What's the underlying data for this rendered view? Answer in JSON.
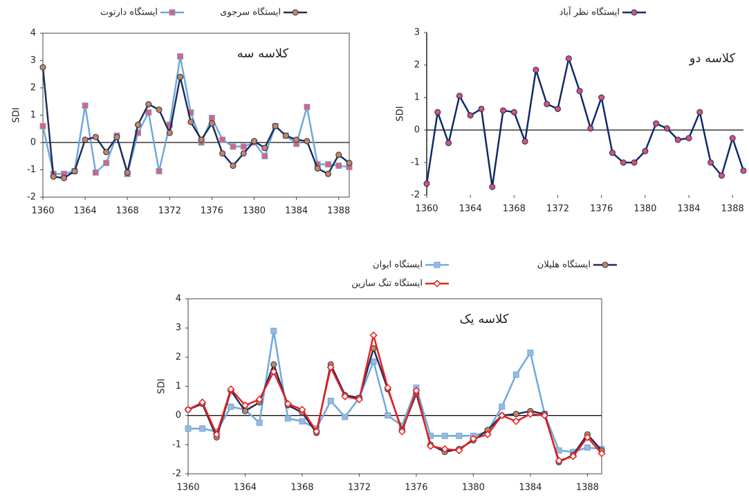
{
  "chart_data": [
    {
      "type": "line",
      "annotation": "کلاسه سه",
      "ylabel": "SDI",
      "x": [
        1360,
        1361,
        1362,
        1363,
        1364,
        1365,
        1366,
        1367,
        1368,
        1369,
        1370,
        1371,
        1372,
        1373,
        1374,
        1375,
        1376,
        1377,
        1378,
        1379,
        1380,
        1381,
        1382,
        1383,
        1384,
        1385,
        1386,
        1387,
        1388,
        1389
      ],
      "xlim": [
        1360,
        1389
      ],
      "xticks": [
        1360,
        1364,
        1368,
        1372,
        1376,
        1380,
        1384,
        1388
      ],
      "ylim": [
        -2,
        4
      ],
      "yticks": [
        -2,
        -1,
        0,
        1,
        2,
        3,
        4
      ],
      "series": [
        {
          "name": "ایستگاه دارتوت",
          "color": "#6fa8dc",
          "marker": "square",
          "marker_color": "#e0607a",
          "values": [
            0.6,
            -1.15,
            -1.15,
            -1.05,
            1.35,
            -1.1,
            -0.75,
            0.25,
            -1.15,
            0.35,
            1.1,
            -1.05,
            0.65,
            3.15,
            1.1,
            0.0,
            0.9,
            0.1,
            -0.15,
            -0.15,
            0.0,
            -0.5,
            0.6,
            0.25,
            -0.05,
            1.3,
            -0.8,
            -0.8,
            -0.85,
            -0.9
          ]
        },
        {
          "name": "ایستگاه سرجوی",
          "color": "#1f2d5a",
          "marker": "circle",
          "marker_color": "#c8875a",
          "values": [
            2.75,
            -1.25,
            -1.3,
            -1.05,
            0.1,
            0.2,
            -0.35,
            0.2,
            -1.1,
            0.65,
            1.4,
            1.2,
            0.35,
            2.4,
            0.75,
            0.1,
            0.7,
            -0.4,
            -0.85,
            -0.4,
            0.05,
            -0.2,
            0.6,
            0.25,
            0.1,
            0.05,
            -0.95,
            -1.15,
            -0.45,
            -0.75
          ]
        }
      ]
    },
    {
      "type": "line",
      "annotation": "کلاسه دو",
      "ylabel": "SDI",
      "x": [
        1360,
        1361,
        1362,
        1363,
        1364,
        1365,
        1366,
        1367,
        1368,
        1369,
        1370,
        1371,
        1372,
        1373,
        1374,
        1375,
        1376,
        1377,
        1378,
        1379,
        1380,
        1381,
        1382,
        1383,
        1384,
        1385,
        1386,
        1387,
        1388,
        1389
      ],
      "xlim": [
        1360,
        1389
      ],
      "xticks": [
        1360,
        1364,
        1368,
        1372,
        1376,
        1380,
        1384,
        1388
      ],
      "ylim": [
        -2,
        3
      ],
      "yticks": [
        -2,
        -1,
        0,
        1,
        2,
        3
      ],
      "series": [
        {
          "name": "ایستگاه نظر آباد",
          "color": "#0f2a6b",
          "marker": "circle",
          "marker_color": "#d9546a",
          "values": [
            -1.65,
            0.55,
            -0.4,
            1.05,
            0.45,
            0.65,
            -1.75,
            0.6,
            0.55,
            -0.35,
            1.85,
            0.8,
            0.65,
            2.2,
            1.2,
            0.05,
            1.0,
            -0.7,
            -1.0,
            -1.0,
            -0.65,
            0.2,
            0.05,
            -0.3,
            -0.25,
            0.55,
            -1.0,
            -1.4,
            -0.25,
            -1.25
          ]
        }
      ]
    },
    {
      "type": "line",
      "annotation": "کلاسه یک",
      "ylabel": "SDI",
      "x": [
        1360,
        1361,
        1362,
        1363,
        1364,
        1365,
        1366,
        1367,
        1368,
        1369,
        1370,
        1371,
        1372,
        1373,
        1374,
        1375,
        1376,
        1377,
        1378,
        1379,
        1380,
        1381,
        1382,
        1383,
        1384,
        1385,
        1386,
        1387,
        1388,
        1389
      ],
      "xlim": [
        1360,
        1389
      ],
      "xticks": [
        1360,
        1364,
        1368,
        1372,
        1376,
        1380,
        1384,
        1388
      ],
      "ylim": [
        -2,
        4
      ],
      "yticks": [
        -2,
        -1,
        0,
        1,
        2,
        3,
        4
      ],
      "series": [
        {
          "name": "ایستگاه ایوان",
          "color": "#6fa8dc",
          "marker": "square",
          "marker_color": "#9bb8dc",
          "values": [
            -0.45,
            -0.45,
            -0.55,
            0.3,
            0.2,
            -0.25,
            2.9,
            -0.1,
            -0.2,
            -0.45,
            0.5,
            -0.05,
            0.6,
            1.85,
            0.0,
            -0.35,
            0.95,
            -0.7,
            -0.7,
            -0.7,
            -0.7,
            -0.55,
            0.3,
            1.4,
            2.15,
            0.05,
            -1.2,
            -1.25,
            -1.1,
            -1.15
          ]
        },
        {
          "name": "ایستگاه هلیلان",
          "color": "#1f2d5a",
          "marker": "circle",
          "marker_color": "#c8875a",
          "values": [
            0.2,
            0.4,
            -0.75,
            0.85,
            0.15,
            0.45,
            1.75,
            0.35,
            0.1,
            -0.6,
            1.75,
            0.7,
            0.6,
            2.3,
            0.9,
            -0.5,
            0.75,
            -1.0,
            -1.25,
            -1.15,
            -0.85,
            -0.5,
            0.0,
            0.05,
            0.15,
            0.05,
            -1.6,
            -1.35,
            -0.65,
            -1.2
          ]
        },
        {
          "name": "ایستگاه تنگ سازین",
          "color": "#e8201e",
          "marker": "diamond",
          "marker_color": "#ffffff",
          "values": [
            0.2,
            0.45,
            -0.65,
            0.9,
            0.35,
            0.55,
            1.5,
            0.4,
            0.2,
            -0.55,
            1.65,
            0.65,
            0.55,
            2.75,
            0.95,
            -0.55,
            0.85,
            -1.05,
            -1.15,
            -1.2,
            -0.8,
            -0.65,
            0.0,
            -0.2,
            0.05,
            0.0,
            -1.55,
            -1.4,
            -0.75,
            -1.3
          ]
        }
      ]
    }
  ]
}
